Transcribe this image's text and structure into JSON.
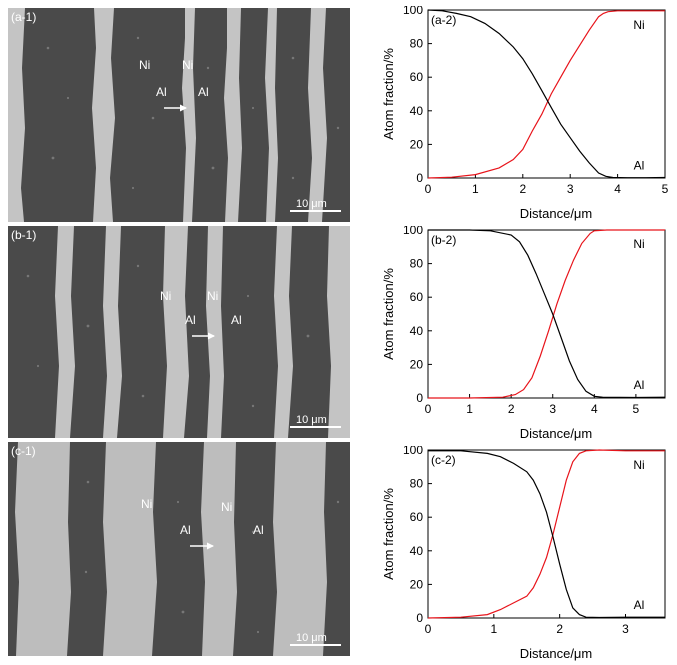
{
  "micrographs": [
    {
      "tag": "(a-1)",
      "labels": {
        "ni_1": "Ni",
        "ni_2": "Ni",
        "al_1": "Al",
        "al_2": "Al"
      },
      "scale_bar": "10 μm"
    },
    {
      "tag": "(b-1)",
      "labels": {
        "ni_1": "Ni",
        "ni_2": "Ni",
        "al_1": "Al",
        "al_2": "Al"
      },
      "scale_bar": "10 μm"
    },
    {
      "tag": "(c-1)",
      "labels": {
        "ni_1": "Ni",
        "ni_2": "Ni",
        "al_1": "Al",
        "al_2": "Al"
      },
      "scale_bar": "10 μm"
    }
  ],
  "colors": {
    "ni_curve": "#e8141b",
    "al_curve": "#000000",
    "axes": "#000000"
  },
  "chart_data": [
    {
      "type": "line",
      "tag": "(a-2)",
      "xlabel": "Distance/μm",
      "ylabel": "Atom fraction/%",
      "xlim": [
        0,
        5
      ],
      "ylim": [
        0,
        100
      ],
      "xticks": [
        0,
        1,
        2,
        3,
        4,
        5
      ],
      "yticks": [
        0,
        20,
        40,
        60,
        80,
        100
      ],
      "series": [
        {
          "name": "Ni",
          "color": "#e8141b",
          "x": [
            0,
            0.5,
            1.0,
            1.5,
            1.8,
            2.0,
            2.2,
            2.4,
            2.6,
            2.8,
            3.0,
            3.2,
            3.4,
            3.6,
            3.7,
            3.8,
            4.0,
            4.5,
            5.0
          ],
          "y": [
            0,
            0.5,
            2,
            6,
            11,
            17,
            28,
            38,
            50,
            60,
            70,
            79,
            88,
            96,
            98,
            99,
            99.5,
            99.5,
            99.5
          ]
        },
        {
          "name": "Al",
          "color": "#000000",
          "x": [
            0,
            0.3,
            0.6,
            0.9,
            1.2,
            1.5,
            1.8,
            2.0,
            2.2,
            2.4,
            2.6,
            2.8,
            3.0,
            3.2,
            3.4,
            3.6,
            3.75,
            3.9,
            4.2,
            4.6,
            5.0
          ],
          "y": [
            100,
            99.5,
            98,
            96,
            92,
            86,
            78,
            71,
            62,
            52,
            42,
            32,
            24,
            16,
            9,
            3,
            1,
            0.3,
            0.2,
            0.2,
            0.3
          ]
        }
      ]
    },
    {
      "type": "line",
      "tag": "(b-2)",
      "xlabel": "Distance/μm",
      "ylabel": "Atom fraction/%",
      "xlim": [
        0,
        5.7
      ],
      "ylim": [
        0,
        100
      ],
      "xticks": [
        0,
        1,
        2,
        3,
        4,
        5
      ],
      "yticks": [
        0,
        20,
        40,
        60,
        80,
        100
      ],
      "series": [
        {
          "name": "Ni",
          "color": "#e8141b",
          "x": [
            0,
            1.0,
            1.8,
            2.1,
            2.3,
            2.5,
            2.7,
            2.9,
            3.1,
            3.3,
            3.5,
            3.7,
            3.9,
            4.0,
            4.3,
            5.0,
            5.7
          ],
          "y": [
            0,
            0,
            0.5,
            2,
            5,
            12,
            25,
            40,
            56,
            70,
            82,
            92,
            98,
            99.5,
            100,
            100,
            100
          ]
        },
        {
          "name": "Al",
          "color": "#000000",
          "x": [
            0,
            1.0,
            1.5,
            2.0,
            2.2,
            2.4,
            2.6,
            2.8,
            3.0,
            3.2,
            3.4,
            3.6,
            3.8,
            4.0,
            4.2,
            5.0,
            5.7
          ],
          "y": [
            100,
            100,
            99.5,
            97,
            93,
            85,
            74,
            62,
            50,
            36,
            22,
            11,
            4,
            1,
            0.5,
            0.3,
            0.5
          ]
        }
      ]
    },
    {
      "type": "line",
      "tag": "(c-2)",
      "xlabel": "Distance/μm",
      "ylabel": "Atom fraction/%",
      "xlim": [
        0,
        3.6
      ],
      "ylim": [
        0,
        100
      ],
      "xticks": [
        0,
        1,
        2,
        3
      ],
      "yticks": [
        0,
        20,
        40,
        60,
        80,
        100
      ],
      "series": [
        {
          "name": "Ni",
          "color": "#e8141b",
          "x": [
            0,
            0.5,
            0.9,
            1.1,
            1.3,
            1.5,
            1.6,
            1.7,
            1.8,
            1.9,
            2.0,
            2.1,
            2.2,
            2.3,
            2.4,
            2.6,
            3.0,
            3.6
          ],
          "y": [
            0,
            0.5,
            2,
            5,
            9,
            13,
            18,
            26,
            36,
            50,
            66,
            82,
            93,
            98,
            99.5,
            100,
            99.5,
            99.5
          ]
        },
        {
          "name": "Al",
          "color": "#000000",
          "x": [
            0,
            0.5,
            0.9,
            1.1,
            1.3,
            1.5,
            1.6,
            1.7,
            1.8,
            1.9,
            2.0,
            2.1,
            2.2,
            2.3,
            2.4,
            2.6,
            3.0,
            3.6
          ],
          "y": [
            99.5,
            99.5,
            98,
            96,
            92,
            87,
            82,
            74,
            63,
            48,
            32,
            17,
            6,
            2,
            0.5,
            0.3,
            0.5,
            0.5
          ]
        }
      ]
    }
  ]
}
